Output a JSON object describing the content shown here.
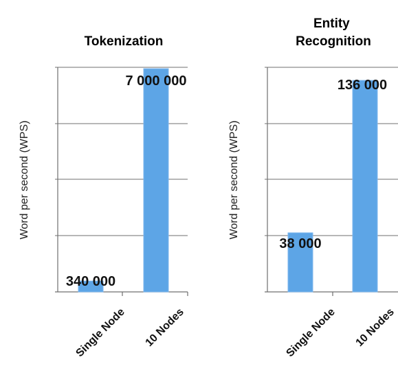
{
  "chart_data": [
    {
      "type": "bar",
      "title": "Tokenization",
      "ylabel": "Word per second (WPS)",
      "xlabel": "",
      "categories": [
        "Single Node",
        "10 Nodes"
      ],
      "values": [
        340000,
        7000000
      ],
      "value_labels": [
        "340 000",
        "7 000 000"
      ],
      "ylim": [
        0,
        7000000
      ],
      "grid": true,
      "colors": {
        "bar": "#5da5e6"
      }
    },
    {
      "type": "bar",
      "title": "Entity\nRecognition",
      "title_lines": [
        "Entity",
        "Recognition"
      ],
      "ylabel": "Word per second (WPS)",
      "xlabel": "",
      "categories": [
        "Single Node",
        "10 Nodes"
      ],
      "values": [
        38000,
        136000
      ],
      "value_labels": [
        "38 000",
        "136 000"
      ],
      "ylim": [
        0,
        140000
      ],
      "grid": true,
      "colors": {
        "bar": "#5da5e6"
      }
    }
  ]
}
